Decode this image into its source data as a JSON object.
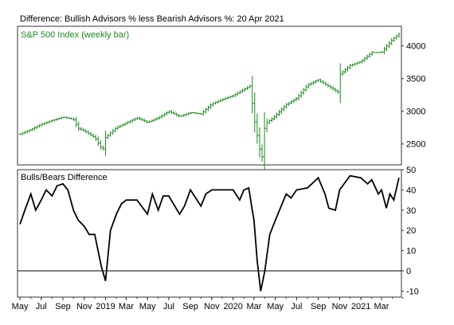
{
  "title": "Difference: Bullish Advisors % less Bearish Advisors %: 20 Apr 2021",
  "colors": {
    "price": "#1a8a1a",
    "difference": "#000000",
    "frame": "#333333"
  },
  "chart_data": [
    {
      "type": "ohlc",
      "panel_label": "S&P 500 Index (weekly bar)",
      "ylim": [
        2180,
        4300
      ],
      "yticks": [
        2500,
        3000,
        3500,
        4000
      ],
      "x": [
        "2018-05-01",
        "2018-06-01",
        "2018-07-01",
        "2018-08-01",
        "2018-09-01",
        "2018-10-01",
        "2018-10-15",
        "2018-11-01",
        "2018-12-01",
        "2018-12-24",
        "2019-01-01",
        "2019-02-01",
        "2019-03-01",
        "2019-04-01",
        "2019-05-01",
        "2019-06-01",
        "2019-07-01",
        "2019-08-01",
        "2019-09-01",
        "2019-10-01",
        "2019-11-01",
        "2019-12-01",
        "2020-01-01",
        "2020-02-19",
        "2020-03-01",
        "2020-03-23",
        "2020-04-01",
        "2020-05-01",
        "2020-06-01",
        "2020-07-01",
        "2020-08-01",
        "2020-09-01",
        "2020-10-01",
        "2020-10-30",
        "2020-11-01",
        "2020-12-01",
        "2021-01-01",
        "2021-02-01",
        "2021-03-01",
        "2021-04-01",
        "2021-04-20"
      ],
      "values": [
        2650,
        2720,
        2800,
        2860,
        2910,
        2880,
        2740,
        2700,
        2600,
        2400,
        2600,
        2750,
        2820,
        2900,
        2830,
        2900,
        3000,
        2920,
        2980,
        2960,
        3110,
        3180,
        3240,
        3390,
        2900,
        2240,
        2800,
        2930,
        3100,
        3200,
        3400,
        3480,
        3380,
        3280,
        3560,
        3700,
        3760,
        3900,
        3900,
        4100,
        4180
      ],
      "xticks": [
        "May",
        "Jul",
        "Sep",
        "Nov",
        "2019",
        "Mar",
        "May",
        "Jul",
        "Sep",
        "Nov",
        "2020",
        "Mar",
        "May",
        "Jul",
        "Sep",
        "Nov",
        "2021",
        "Mar"
      ]
    },
    {
      "type": "line",
      "panel_label": "Bulls/Bears Difference",
      "ylim": [
        -13,
        50
      ],
      "yticks": [
        -10,
        0,
        10,
        20,
        30,
        40,
        50
      ],
      "reference_line": 0,
      "x": [
        "2018-05-01",
        "2018-05-15",
        "2018-06-01",
        "2018-06-15",
        "2018-07-01",
        "2018-07-15",
        "2018-08-01",
        "2018-08-15",
        "2018-09-01",
        "2018-09-15",
        "2018-10-01",
        "2018-10-15",
        "2018-11-01",
        "2018-11-15",
        "2018-12-01",
        "2018-12-20",
        "2019-01-01",
        "2019-01-15",
        "2019-02-01",
        "2019-02-15",
        "2019-03-01",
        "2019-04-01",
        "2019-05-01",
        "2019-05-15",
        "2019-06-01",
        "2019-06-15",
        "2019-07-01",
        "2019-08-01",
        "2019-08-15",
        "2019-09-01",
        "2019-10-01",
        "2019-10-15",
        "2019-11-01",
        "2019-12-01",
        "2020-01-01",
        "2020-01-20",
        "2020-02-01",
        "2020-02-15",
        "2020-02-25",
        "2020-03-01",
        "2020-03-10",
        "2020-03-20",
        "2020-04-01",
        "2020-04-15",
        "2020-05-01",
        "2020-06-01",
        "2020-06-15",
        "2020-07-01",
        "2020-08-01",
        "2020-09-01",
        "2020-09-20",
        "2020-10-01",
        "2020-10-20",
        "2020-11-01",
        "2020-12-01",
        "2021-01-01",
        "2021-01-20",
        "2021-02-01",
        "2021-02-20",
        "2021-03-01",
        "2021-03-15",
        "2021-03-25",
        "2021-04-05",
        "2021-04-20"
      ],
      "values": [
        23,
        30,
        38,
        30,
        35,
        40,
        37,
        42,
        43,
        40,
        30,
        25,
        22,
        18,
        18,
        2,
        -5,
        20,
        28,
        33,
        35,
        35,
        28,
        38,
        30,
        37,
        37,
        28,
        32,
        40,
        32,
        38,
        40,
        40,
        40,
        35,
        40,
        41,
        30,
        25,
        5,
        -10,
        0,
        18,
        25,
        38,
        36,
        40,
        41,
        46,
        38,
        31,
        30,
        40,
        47,
        46,
        43,
        45,
        38,
        40,
        31,
        38,
        35,
        46
      ]
    }
  ]
}
